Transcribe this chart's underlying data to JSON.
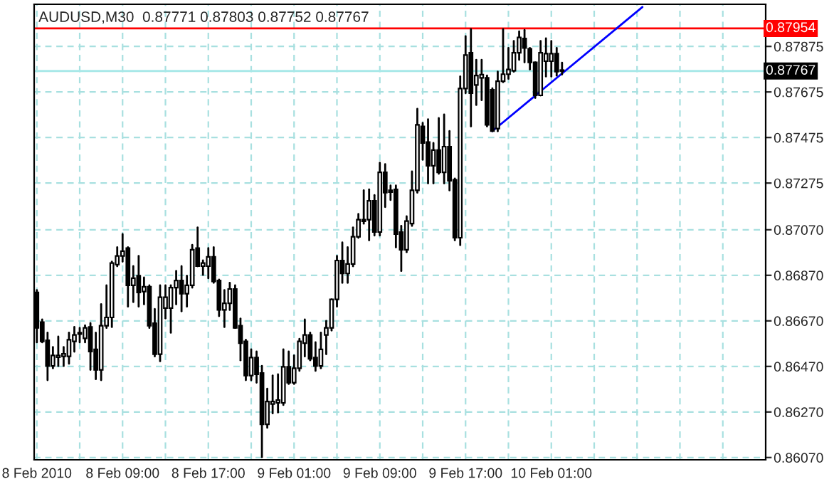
{
  "chart_data": {
    "type": "candlestick",
    "title": "AUDUSD,M30  0.87771 0.87803 0.87752 0.87767",
    "x": [
      "2010-02-08T01:00",
      "2010-02-08T01:30",
      "2010-02-08T02:00",
      "2010-02-08T02:30",
      "2010-02-08T03:00",
      "2010-02-08T03:30",
      "2010-02-08T04:00",
      "2010-02-08T04:30",
      "2010-02-08T05:00",
      "2010-02-08T05:30",
      "2010-02-08T06:00",
      "2010-02-08T06:30",
      "2010-02-08T07:00",
      "2010-02-08T07:30",
      "2010-02-08T08:00",
      "2010-02-08T08:30",
      "2010-02-08T09:00",
      "2010-02-08T09:30",
      "2010-02-08T10:00",
      "2010-02-08T10:30",
      "2010-02-08T11:00",
      "2010-02-08T11:30",
      "2010-02-08T12:00",
      "2010-02-08T12:30",
      "2010-02-08T13:00",
      "2010-02-08T13:30",
      "2010-02-08T14:00",
      "2010-02-08T14:30",
      "2010-02-08T15:00",
      "2010-02-08T15:30",
      "2010-02-08T16:00",
      "2010-02-08T16:30",
      "2010-02-08T17:00",
      "2010-02-08T17:30",
      "2010-02-08T18:00",
      "2010-02-08T18:30",
      "2010-02-08T19:00",
      "2010-02-08T19:30",
      "2010-02-08T20:00",
      "2010-02-08T20:30",
      "2010-02-08T21:00",
      "2010-02-08T21:30",
      "2010-02-08T22:00",
      "2010-02-08T22:30",
      "2010-02-08T23:00",
      "2010-02-08T23:30",
      "2010-02-09T00:00",
      "2010-02-09T00:30",
      "2010-02-09T01:00",
      "2010-02-09T01:30",
      "2010-02-09T02:00",
      "2010-02-09T02:30",
      "2010-02-09T03:00",
      "2010-02-09T03:30",
      "2010-02-09T04:00",
      "2010-02-09T04:30",
      "2010-02-09T05:00",
      "2010-02-09T05:30",
      "2010-02-09T06:00",
      "2010-02-09T06:30",
      "2010-02-09T07:00",
      "2010-02-09T07:30",
      "2010-02-09T08:00",
      "2010-02-09T08:30",
      "2010-02-09T09:00",
      "2010-02-09T09:30",
      "2010-02-09T10:00",
      "2010-02-09T10:30",
      "2010-02-09T11:00",
      "2010-02-09T11:30",
      "2010-02-09T12:00",
      "2010-02-09T12:30",
      "2010-02-09T13:00",
      "2010-02-09T13:30",
      "2010-02-09T14:00",
      "2010-02-09T14:30",
      "2010-02-09T15:00",
      "2010-02-09T15:30",
      "2010-02-09T16:00",
      "2010-02-09T16:30",
      "2010-02-09T17:00",
      "2010-02-09T17:30",
      "2010-02-09T18:00",
      "2010-02-09T18:30",
      "2010-02-09T19:00",
      "2010-02-09T19:30",
      "2010-02-09T20:00",
      "2010-02-09T20:30",
      "2010-02-09T21:00",
      "2010-02-09T21:30",
      "2010-02-09T22:00",
      "2010-02-09T22:30",
      "2010-02-09T23:00",
      "2010-02-09T23:30",
      "2010-02-10T00:00",
      "2010-02-10T00:30",
      "2010-02-10T01:00",
      "2010-02-10T01:30",
      "2010-02-10T02:00"
    ],
    "ohlc": [
      [
        0.86795,
        0.86805,
        0.86576,
        0.86639
      ],
      [
        0.86664,
        0.86676,
        0.86576,
        0.8658
      ],
      [
        0.86585,
        0.86618,
        0.8641,
        0.86472
      ],
      [
        0.86472,
        0.86555,
        0.86462,
        0.86518
      ],
      [
        0.8651,
        0.86601,
        0.86472,
        0.86518
      ],
      [
        0.86514,
        0.86555,
        0.86472,
        0.86525
      ],
      [
        0.86514,
        0.86618,
        0.86482,
        0.86587
      ],
      [
        0.8658,
        0.86643,
        0.86535,
        0.86608
      ],
      [
        0.86612,
        0.86639,
        0.86576,
        0.86618
      ],
      [
        0.86593,
        0.8665,
        0.86576,
        0.86639
      ],
      [
        0.86643,
        0.8666,
        0.86455,
        0.86535
      ],
      [
        0.86545,
        0.86618,
        0.86414,
        0.86455
      ],
      [
        0.86455,
        0.86743,
        0.8641,
        0.86649
      ],
      [
        0.86649,
        0.86826,
        0.86639,
        0.86685
      ],
      [
        0.86685,
        0.8693,
        0.86643,
        0.86924
      ],
      [
        0.86917,
        0.86993,
        0.8691,
        0.86955
      ],
      [
        0.86955,
        0.87051,
        0.8693,
        0.86976
      ],
      [
        0.86989,
        0.86993,
        0.86733,
        0.86826
      ],
      [
        0.86826,
        0.8691,
        0.86753,
        0.86857
      ],
      [
        0.86868,
        0.86955,
        0.86733,
        0.86795
      ],
      [
        0.86799,
        0.8686,
        0.86743,
        0.8682
      ],
      [
        0.8682,
        0.86826,
        0.86639,
        0.86649
      ],
      [
        0.8666,
        0.86722,
        0.86514,
        0.86524
      ],
      [
        0.86524,
        0.86826,
        0.86493,
        0.86774
      ],
      [
        0.86726,
        0.86826,
        0.86681,
        0.86774
      ],
      [
        0.86726,
        0.86826,
        0.86618,
        0.86816
      ],
      [
        0.86816,
        0.86889,
        0.86743,
        0.86847
      ],
      [
        0.86847,
        0.8691,
        0.86712,
        0.86789
      ],
      [
        0.86789,
        0.86868,
        0.86733,
        0.86826
      ],
      [
        0.86826,
        0.87003,
        0.86816,
        0.86982
      ],
      [
        0.86989,
        0.8708,
        0.8691,
        0.8691
      ],
      [
        0.8691,
        0.86935,
        0.86872,
        0.86924
      ],
      [
        0.8691,
        0.86989,
        0.86857,
        0.86951
      ],
      [
        0.86951,
        0.86993,
        0.86837,
        0.86843
      ],
      [
        0.86847,
        0.86851,
        0.86691,
        0.86718
      ],
      [
        0.86718,
        0.86805,
        0.86643,
        0.86747
      ],
      [
        0.86747,
        0.86837,
        0.86718,
        0.8681
      ],
      [
        0.8681,
        0.86826,
        0.86639,
        0.86639
      ],
      [
        0.86649,
        0.8668,
        0.86497,
        0.86572
      ],
      [
        0.8658,
        0.86587,
        0.8641,
        0.8643
      ],
      [
        0.8643,
        0.86545,
        0.8641,
        0.86509
      ],
      [
        0.86509,
        0.86535,
        0.86399,
        0.86435
      ],
      [
        0.86441,
        0.86472,
        0.86072,
        0.86216
      ],
      [
        0.86216,
        0.86372,
        0.86201,
        0.86316
      ],
      [
        0.86305,
        0.8643,
        0.86264,
        0.86316
      ],
      [
        0.8631,
        0.86435,
        0.86268,
        0.86322
      ],
      [
        0.8631,
        0.86545,
        0.86301,
        0.86468
      ],
      [
        0.86468,
        0.86535,
        0.86393,
        0.86399
      ],
      [
        0.86399,
        0.86518,
        0.86393,
        0.86462
      ],
      [
        0.86462,
        0.86591,
        0.86451,
        0.8658
      ],
      [
        0.86572,
        0.86676,
        0.86514,
        0.86608
      ],
      [
        0.86608,
        0.86618,
        0.86497,
        0.86503
      ],
      [
        0.86509,
        0.86576,
        0.86451,
        0.86472
      ],
      [
        0.86472,
        0.86618,
        0.86462,
        0.86545
      ],
      [
        0.86608,
        0.8667,
        0.86524,
        0.86639
      ],
      [
        0.86639,
        0.86764,
        0.86628,
        0.86764
      ],
      [
        0.86764,
        0.86955,
        0.86733,
        0.86935
      ],
      [
        0.86935,
        0.87014,
        0.86837,
        0.86878
      ],
      [
        0.86878,
        0.86993,
        0.86837,
        0.8692
      ],
      [
        0.8692,
        0.8708,
        0.8691,
        0.87039
      ],
      [
        0.87039,
        0.87139,
        0.87035,
        0.87114
      ],
      [
        0.87107,
        0.87243,
        0.87097,
        0.87114
      ],
      [
        0.87114,
        0.87247,
        0.87024,
        0.87197
      ],
      [
        0.87197,
        0.87222,
        0.87045,
        0.8706
      ],
      [
        0.8706,
        0.87364,
        0.87045,
        0.87322
      ],
      [
        0.87322,
        0.87358,
        0.8717,
        0.87233
      ],
      [
        0.87243,
        0.87264,
        0.87201,
        0.87235
      ],
      [
        0.87247,
        0.87264,
        0.86993,
        0.87051
      ],
      [
        0.8706,
        0.87087,
        0.86889,
        0.86982
      ],
      [
        0.86982,
        0.87129,
        0.86972,
        0.87108
      ],
      [
        0.87097,
        0.87326,
        0.87087,
        0.87243
      ],
      [
        0.87243,
        0.87601,
        0.87233,
        0.87531
      ],
      [
        0.87524,
        0.87539,
        0.87378,
        0.87451
      ],
      [
        0.87455,
        0.87555,
        0.87274,
        0.87351
      ],
      [
        0.87351,
        0.87451,
        0.87274,
        0.8742
      ],
      [
        0.8742,
        0.8756,
        0.87316,
        0.87322
      ],
      [
        0.87322,
        0.87576,
        0.87274,
        0.87435
      ],
      [
        0.87435,
        0.87503,
        0.87243,
        0.87285
      ],
      [
        0.87289,
        0.87295,
        0.87024,
        0.87035
      ],
      [
        0.87035,
        0.87743,
        0.87003,
        0.8769
      ],
      [
        0.8769,
        0.8792,
        0.8767,
        0.87837
      ],
      [
        0.87847,
        0.87951,
        0.87524,
        0.8767
      ],
      [
        0.87706,
        0.87816,
        0.87618,
        0.87747
      ],
      [
        0.87737,
        0.87816,
        0.87639,
        0.87751
      ],
      [
        0.87737,
        0.87747,
        0.87524,
        0.87531
      ],
      [
        0.87685,
        0.87691,
        0.87503,
        0.87503
      ],
      [
        0.87514,
        0.87764,
        0.87503,
        0.87722
      ],
      [
        0.87722,
        0.87951,
        0.87718,
        0.87753
      ],
      [
        0.87753,
        0.87868,
        0.87733,
        0.87774
      ],
      [
        0.87768,
        0.87899,
        0.87764,
        0.87847
      ],
      [
        0.87847,
        0.87941,
        0.87816,
        0.87914
      ],
      [
        0.8791,
        0.87947,
        0.87805,
        0.87868
      ],
      [
        0.87864,
        0.87868,
        0.87774,
        0.87805
      ],
      [
        0.87805,
        0.87805,
        0.87649,
        0.8766
      ],
      [
        0.8766,
        0.87899,
        0.8766,
        0.87847
      ],
      [
        0.8781,
        0.8791,
        0.87743,
        0.87843
      ],
      [
        0.8781,
        0.87899,
        0.87743,
        0.87843
      ],
      [
        0.87843,
        0.87868,
        0.87747,
        0.87764
      ],
      [
        0.87771,
        0.87803,
        0.87752,
        0.87767
      ]
    ],
    "series": [
      {
        "type": "line",
        "x": [
          "2010-02-09T19:30",
          "2010-02-10T09:30"
        ],
        "values": [
          0.87503,
          0.88048
        ],
        "color": "#0000ff"
      }
    ],
    "ref_lines": [
      {
        "axis": "y",
        "value": 0.87954,
        "label": "0.87954",
        "color": "#ff0000"
      },
      {
        "axis": "y",
        "value": 0.87767,
        "label": "0.87767",
        "color": "#a8e8e8"
      }
    ],
    "ylim": [
      0.8606,
      0.8806
    ],
    "yticks": [
      0.87875,
      0.87675,
      0.87475,
      0.87275,
      {
        "value": 0.8707,
        "label": "0.87070"
      },
      {
        "value": 0.8687,
        "label": "0.86870"
      },
      {
        "value": 0.8667,
        "label": "0.86670"
      },
      {
        "value": 0.8647,
        "label": "0.86470"
      },
      {
        "value": 0.8627,
        "label": "0.86270"
      },
      {
        "value": 0.8607,
        "label": "0.86070"
      }
    ],
    "xlim": [
      "2010-02-08T00:45",
      "2010-02-10T21:00"
    ],
    "xticks": [
      {
        "value": "2010-02-08T01:00",
        "label": "8 Feb 2010"
      },
      {
        "value": "2010-02-08T05:00",
        "label": null
      },
      {
        "value": "2010-02-08T09:00",
        "label": "8 Feb 09:00"
      },
      {
        "value": "2010-02-08T13:00",
        "label": null
      },
      {
        "value": "2010-02-08T17:00",
        "label": "8 Feb 17:00"
      },
      {
        "value": "2010-02-08T21:00",
        "label": null
      },
      {
        "value": "2010-02-09T01:00",
        "label": "9 Feb 01:00"
      },
      {
        "value": "2010-02-09T05:00",
        "label": null
      },
      {
        "value": "2010-02-09T09:00",
        "label": "9 Feb 09:00"
      },
      {
        "value": "2010-02-09T13:00",
        "label": null
      },
      {
        "value": "2010-02-09T17:00",
        "label": "9 Feb 17:00"
      },
      {
        "value": "2010-02-09T21:00",
        "label": null
      },
      {
        "value": "2010-02-10T01:00",
        "label": "10 Feb 01:00"
      },
      {
        "value": "2010-02-10T05:00",
        "label": null
      },
      {
        "value": "2010-02-10T09:00",
        "label": null
      },
      {
        "value": "2010-02-10T13:00",
        "label": null
      },
      {
        "value": "2010-02-10T17:00",
        "label": null
      }
    ],
    "grid": true
  }
}
